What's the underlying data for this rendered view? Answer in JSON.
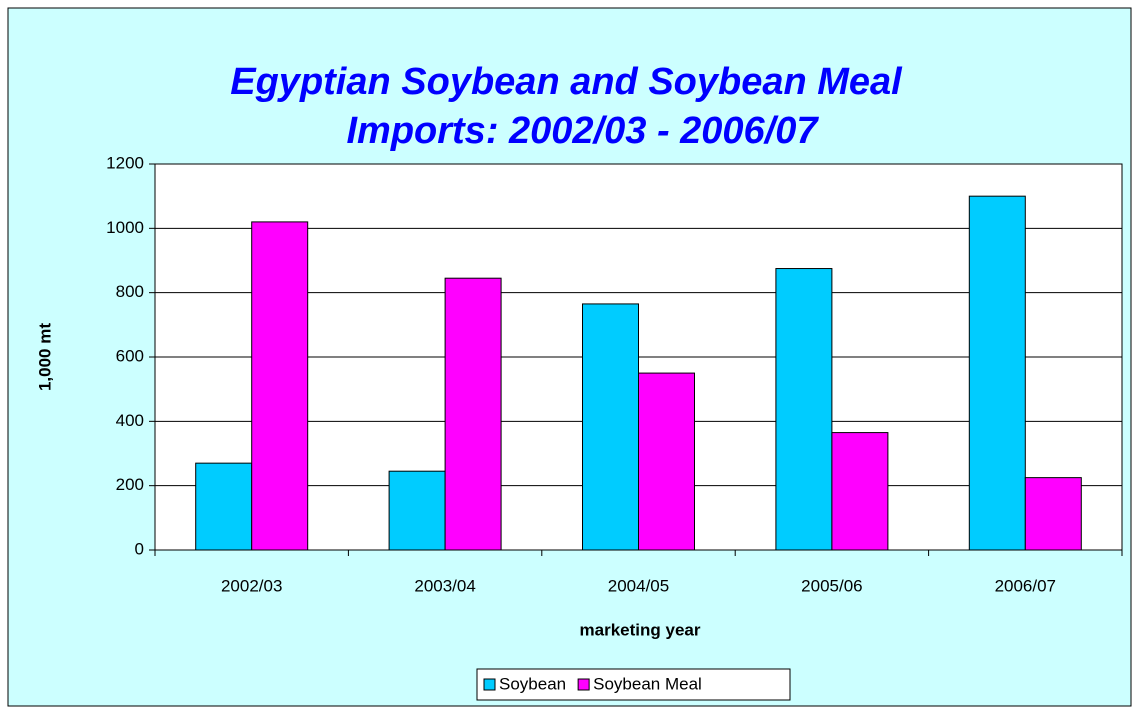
{
  "chart_data": {
    "type": "bar",
    "title": [
      "Egyptian Soybean and Soybean Meal",
      "Imports: 2002/03 - 2006/07"
    ],
    "x_label": "marketing year",
    "y_label": "1,000 mt",
    "categories": [
      "2002/03",
      "2003/04",
      "2004/05",
      "2005/06",
      "2006/07"
    ],
    "series": [
      {
        "name": "Soybean",
        "color": "#00ccff",
        "values": [
          270,
          245,
          765,
          875,
          1100
        ]
      },
      {
        "name": "Soybean Meal",
        "color": "#ff00ff",
        "values": [
          1020,
          845,
          550,
          365,
          225
        ]
      }
    ],
    "ylim": [
      0,
      1200
    ],
    "yticks": [
      0,
      200,
      400,
      600,
      800,
      1000,
      1200
    ],
    "grid": true,
    "legend": "bottom"
  }
}
